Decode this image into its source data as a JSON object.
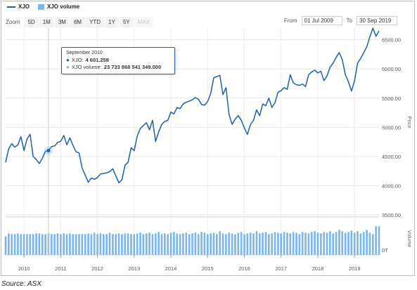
{
  "legend": {
    "price_label": "XJO",
    "volume_label": "XJO volume",
    "price_color": "#1f5fa8",
    "volume_color": "#7cb5ec"
  },
  "toolbar": {
    "zoom_label": "Zoom",
    "buttons": [
      {
        "label": "5D",
        "enabled": true
      },
      {
        "label": "1M",
        "enabled": true
      },
      {
        "label": "3M",
        "enabled": true
      },
      {
        "label": "6M",
        "enabled": true
      },
      {
        "label": "YTD",
        "enabled": true
      },
      {
        "label": "1Y",
        "enabled": true
      },
      {
        "label": "5Y",
        "enabled": true
      },
      {
        "label": "MAX",
        "enabled": false
      }
    ]
  },
  "range": {
    "from_label": "From",
    "from_value": "01 Jul 2009",
    "to_label": "To",
    "to_value": "30 Sep 2019"
  },
  "tooltip": {
    "date": "September 2010",
    "price_label": "XJO:",
    "price_value": "4 601.258",
    "volume_label": "XJO volume:",
    "volume_value": "23 733 868 541 349.000"
  },
  "source": "Source: ASX",
  "chart_data": {
    "type": "line",
    "title": "",
    "ylabel": "Price",
    "y2label": "Volume",
    "ylim": [
      3500,
      6700
    ],
    "y_ticks": [
      "3500.00",
      "4000.00",
      "4500.00",
      "5000.00",
      "5500.00",
      "6000.00",
      "6500.00"
    ],
    "volume_tick": "0T",
    "x_ticks": [
      "2010",
      "2011",
      "2012",
      "2013",
      "2014",
      "2015",
      "2016",
      "2017",
      "2018",
      "2019"
    ],
    "grid": true,
    "highlight_index": 14,
    "series": [
      {
        "name": "XJO",
        "x": [
          "2009-07",
          "2009-08",
          "2009-09",
          "2009-10",
          "2009-11",
          "2009-12",
          "2010-01",
          "2010-02",
          "2010-03",
          "2010-04",
          "2010-05",
          "2010-06",
          "2010-07",
          "2010-08",
          "2010-09",
          "2010-10",
          "2010-11",
          "2010-12",
          "2011-01",
          "2011-02",
          "2011-03",
          "2011-04",
          "2011-05",
          "2011-06",
          "2011-07",
          "2011-08",
          "2011-09",
          "2011-10",
          "2011-11",
          "2011-12",
          "2012-01",
          "2012-02",
          "2012-03",
          "2012-04",
          "2012-05",
          "2012-06",
          "2012-07",
          "2012-08",
          "2012-09",
          "2012-10",
          "2012-11",
          "2012-12",
          "2013-01",
          "2013-02",
          "2013-03",
          "2013-04",
          "2013-05",
          "2013-06",
          "2013-07",
          "2013-08",
          "2013-09",
          "2013-10",
          "2013-11",
          "2013-12",
          "2014-01",
          "2014-02",
          "2014-03",
          "2014-04",
          "2014-05",
          "2014-06",
          "2014-07",
          "2014-08",
          "2014-09",
          "2014-10",
          "2014-11",
          "2014-12",
          "2015-01",
          "2015-02",
          "2015-03",
          "2015-04",
          "2015-05",
          "2015-06",
          "2015-07",
          "2015-08",
          "2015-09",
          "2015-10",
          "2015-11",
          "2015-12",
          "2016-01",
          "2016-02",
          "2016-03",
          "2016-04",
          "2016-05",
          "2016-06",
          "2016-07",
          "2016-08",
          "2016-09",
          "2016-10",
          "2016-11",
          "2016-12",
          "2017-01",
          "2017-02",
          "2017-03",
          "2017-04",
          "2017-05",
          "2017-06",
          "2017-07",
          "2017-08",
          "2017-09",
          "2017-10",
          "2017-11",
          "2017-12",
          "2018-01",
          "2018-02",
          "2018-03",
          "2018-04",
          "2018-05",
          "2018-06",
          "2018-07",
          "2018-08",
          "2018-09",
          "2018-10",
          "2018-11",
          "2018-12",
          "2019-01",
          "2019-02",
          "2019-03",
          "2019-04",
          "2019-05",
          "2019-06",
          "2019-07",
          "2019-08",
          "2019-09"
        ],
        "values": [
          4400,
          4630,
          4720,
          4660,
          4700,
          4840,
          4600,
          4800,
          4880,
          4500,
          4450,
          4380,
          4470,
          4590,
          4601,
          4670,
          4680,
          4740,
          4760,
          4860,
          4700,
          4820,
          4690,
          4580,
          4560,
          4300,
          4180,
          4060,
          4130,
          4110,
          4140,
          4200,
          4210,
          4220,
          4240,
          4290,
          4170,
          4050,
          4100,
          4350,
          4400,
          4650,
          4600,
          4850,
          4980,
          5030,
          5080,
          4960,
          5120,
          4760,
          4920,
          5050,
          5100,
          5120,
          5260,
          5230,
          5340,
          5320,
          5400,
          5430,
          5450,
          5470,
          5510,
          5480,
          5390,
          5380,
          5440,
          5580,
          5850,
          5870,
          5890,
          5560,
          5680,
          5220,
          5050,
          5140,
          5200,
          5120,
          4990,
          4880,
          5050,
          5120,
          5300,
          5200,
          5400,
          5370,
          5500,
          5340,
          5420,
          5600,
          5630,
          5680,
          5650,
          5900,
          5760,
          5730,
          5720,
          5740,
          5700,
          5900,
          5950,
          5980,
          5930,
          5960,
          5800,
          5880,
          6030,
          6100,
          6200,
          6280,
          6160,
          5900,
          5780,
          5620,
          5800,
          6100,
          6180,
          6280,
          6380,
          6550,
          6700,
          6560,
          6650
        ]
      },
      {
        "name": "XJO volume",
        "values": [
          52,
          60,
          58,
          58,
          60,
          58,
          58,
          58,
          58,
          58,
          60,
          60,
          58,
          58,
          61,
          58,
          58,
          60,
          58,
          60,
          58,
          60,
          58,
          58,
          58,
          58,
          58,
          60,
          58,
          62,
          58,
          60,
          58,
          58,
          62,
          58,
          58,
          60,
          58,
          60,
          60,
          58,
          58,
          60,
          62,
          58,
          60,
          62,
          58,
          60,
          64,
          58,
          60,
          58,
          62,
          64,
          60,
          58,
          60,
          62,
          58,
          60,
          62,
          58,
          64,
          62,
          58,
          60,
          62,
          58,
          66,
          60,
          58,
          62,
          60,
          58,
          62,
          64,
          58,
          60,
          62,
          60,
          66,
          60,
          62,
          64,
          58,
          60,
          64,
          62,
          60,
          64,
          62,
          60,
          64,
          62,
          58,
          64,
          62,
          60,
          64,
          66,
          62,
          60,
          64,
          62,
          66,
          60,
          64,
          70,
          66,
          62,
          64,
          68,
          62,
          66,
          60,
          64,
          70,
          62,
          58,
          80,
          80
        ]
      }
    ]
  }
}
